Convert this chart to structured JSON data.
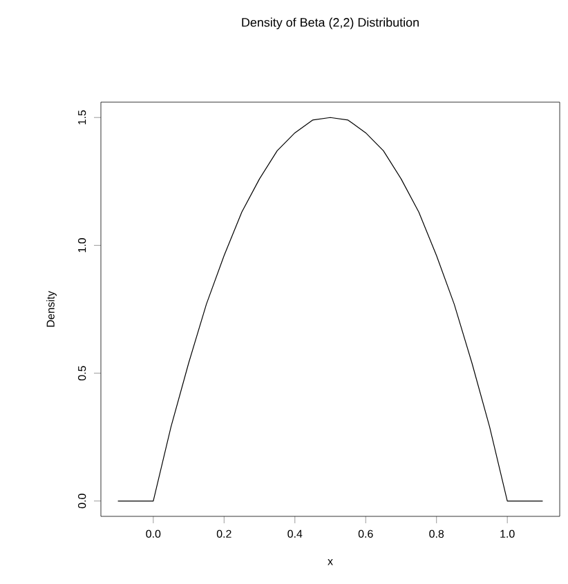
{
  "chart_data": {
    "type": "line",
    "title": "Density of Beta (2,2) Distribution",
    "xlabel": "x",
    "ylabel": "Density",
    "x": [
      -0.1,
      -0.05,
      0,
      0.05,
      0.1,
      0.15,
      0.2,
      0.25,
      0.3,
      0.35,
      0.4,
      0.45,
      0.5,
      0.55,
      0.6,
      0.65,
      0.7,
      0.75,
      0.8,
      0.85,
      0.9,
      0.95,
      1,
      1.05,
      1.1
    ],
    "series": [
      {
        "color": "#000000",
        "values": [
          0,
          0,
          0,
          0.29,
          0.54,
          0.77,
          0.96,
          1.13,
          1.26,
          1.37,
          1.44,
          1.49,
          1.5,
          1.49,
          1.44,
          1.37,
          1.26,
          1.13,
          0.96,
          0.77,
          0.54,
          0.29,
          0,
          0,
          0
        ]
      }
    ],
    "xlim": [
      -0.148,
      1.148
    ],
    "ylim": [
      -0.06,
      1.56
    ],
    "xticks": [
      {
        "value": 0,
        "label": "0.0"
      },
      0.2,
      0.4,
      0.6,
      0.8,
      {
        "value": 1,
        "label": "1.0"
      }
    ],
    "yticks": [
      {
        "value": 0,
        "label": "0.0"
      },
      0.5,
      {
        "value": 1,
        "label": "1.0"
      },
      1.5
    ]
  }
}
